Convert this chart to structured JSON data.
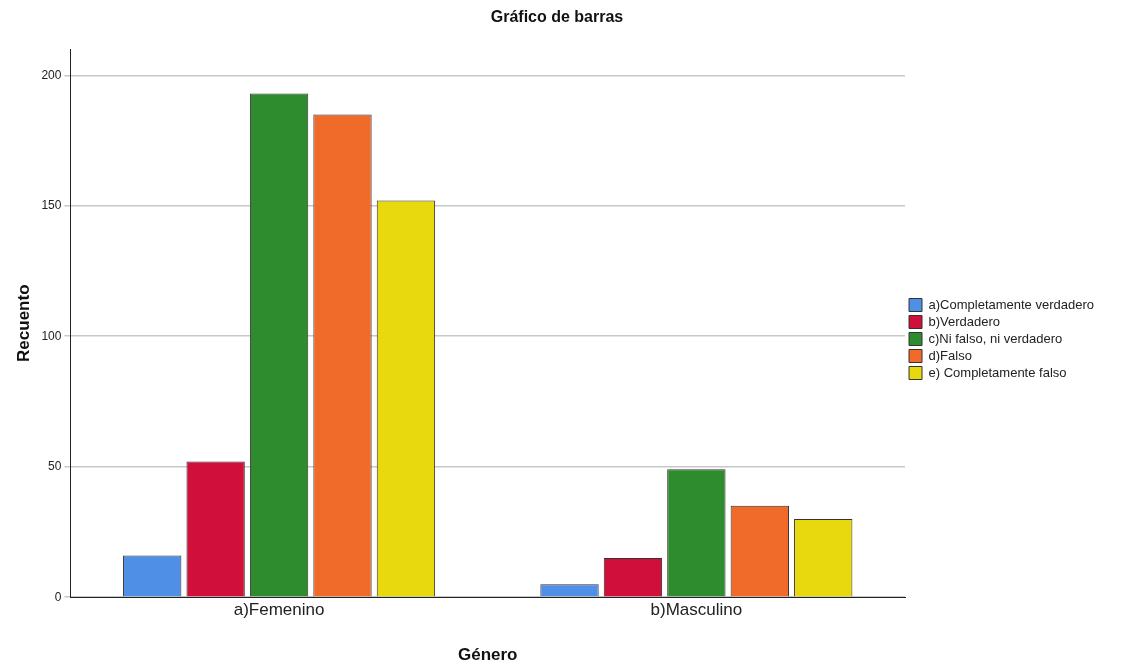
{
  "chart_data": {
    "type": "bar",
    "title": "Gráfico de barras",
    "xlabel": "Género",
    "ylabel": "Recuento",
    "categories": [
      "a)Femenino",
      "b)Masculino"
    ],
    "series": [
      {
        "name": "a)Completamente verdadero",
        "color": "#4f8fe6",
        "values": [
          16,
          5
        ]
      },
      {
        "name": "b)Verdadero",
        "color": "#d0103a",
        "values": [
          52,
          15
        ]
      },
      {
        "name": "c)Ni falso, ni verdadero",
        "color": "#2e8b2e",
        "values": [
          193,
          49
        ]
      },
      {
        "name": "d)Falso",
        "color": "#f06a2a",
        "values": [
          185,
          35
        ]
      },
      {
        "name": "e) Completamente falso",
        "color": "#e8d80e",
        "values": [
          152,
          30
        ]
      }
    ],
    "ylim": [
      0,
      210
    ],
    "yticks": [
      0,
      50,
      100,
      150,
      200
    ],
    "grid": "y",
    "legend": "right"
  }
}
